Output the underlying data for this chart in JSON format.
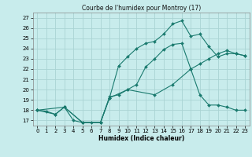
{
  "title": "Courbe de l'humidex pour Montroy (17)",
  "xlabel": "Humidex (Indice chaleur)",
  "bg_color": "#c8ecec",
  "grid_color": "#aad4d4",
  "line_color": "#1a7a6e",
  "xlim": [
    -0.5,
    23.5
  ],
  "ylim": [
    16.5,
    27.5
  ],
  "xticks": [
    0,
    1,
    2,
    3,
    4,
    5,
    6,
    7,
    8,
    9,
    10,
    11,
    12,
    13,
    14,
    15,
    16,
    17,
    18,
    19,
    20,
    21,
    22,
    23
  ],
  "yticks": [
    17,
    18,
    19,
    20,
    21,
    22,
    23,
    24,
    25,
    26,
    27
  ],
  "line1_x": [
    0,
    1,
    2,
    3,
    4,
    5,
    6,
    7,
    8,
    9,
    10,
    11,
    12,
    13,
    14,
    15,
    16,
    17,
    18,
    19,
    20,
    21,
    22,
    23
  ],
  "line1_y": [
    18.0,
    17.9,
    17.6,
    18.3,
    17.0,
    16.8,
    16.8,
    16.8,
    19.3,
    19.5,
    20.0,
    20.5,
    22.2,
    23.0,
    23.9,
    24.4,
    24.5,
    22.0,
    19.5,
    18.5,
    18.5,
    18.3,
    18.0,
    18.0
  ],
  "line2_x": [
    0,
    2,
    3,
    5,
    7,
    8,
    9,
    10,
    11,
    12,
    13,
    14,
    15,
    16,
    17,
    18,
    19,
    20,
    21,
    22,
    23
  ],
  "line2_y": [
    18.0,
    17.6,
    18.3,
    16.8,
    16.8,
    19.2,
    22.3,
    23.2,
    24.0,
    24.5,
    24.7,
    25.4,
    26.4,
    26.7,
    25.2,
    25.4,
    24.2,
    23.2,
    23.5,
    23.5,
    23.3
  ],
  "line3_x": [
    0,
    3,
    5,
    7,
    8,
    10,
    13,
    15,
    17,
    18,
    19,
    20,
    21,
    22,
    23
  ],
  "line3_y": [
    18.0,
    18.3,
    16.8,
    16.8,
    19.2,
    20.0,
    19.5,
    20.5,
    22.0,
    22.5,
    23.0,
    23.5,
    23.8,
    23.5,
    23.3
  ]
}
